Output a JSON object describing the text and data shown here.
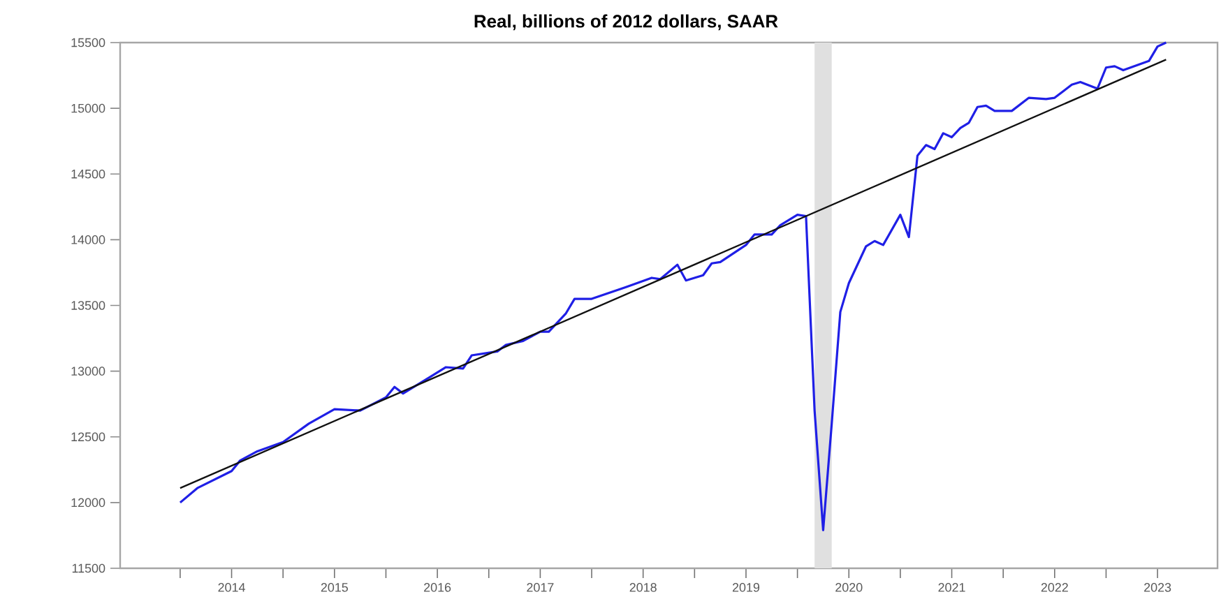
{
  "chart_data": {
    "type": "line",
    "title": "Real, billions of 2012 dollars, SAAR",
    "xlim": [
      "2013-06",
      "2024-02"
    ],
    "ylim": [
      11500,
      15500
    ],
    "yticks": [
      11500,
      12000,
      12500,
      13000,
      13500,
      14000,
      14500,
      15000,
      15500
    ],
    "xticks": [
      {
        "value": "2014-01",
        "label": null
      },
      {
        "value": "2014-07",
        "label": "2014"
      },
      {
        "value": "2015-01",
        "label": null
      },
      {
        "value": "2015-07",
        "label": "2015"
      },
      {
        "value": "2016-01",
        "label": null
      },
      {
        "value": "2016-07",
        "label": "2016"
      },
      {
        "value": "2017-01",
        "label": null
      },
      {
        "value": "2017-07",
        "label": "2017"
      },
      {
        "value": "2018-01",
        "label": null
      },
      {
        "value": "2018-07",
        "label": "2018"
      },
      {
        "value": "2019-01",
        "label": null
      },
      {
        "value": "2019-07",
        "label": "2019"
      },
      {
        "value": "2020-01",
        "label": null
      },
      {
        "value": "2020-07",
        "label": "2020"
      },
      {
        "value": "2021-01",
        "label": null
      },
      {
        "value": "2021-07",
        "label": "2021"
      },
      {
        "value": "2022-01",
        "label": null
      },
      {
        "value": "2022-07",
        "label": "2022"
      },
      {
        "value": "2023-01",
        "label": null
      },
      {
        "value": "2023-07",
        "label": "2023"
      }
    ],
    "bands": [
      {
        "axis": "x",
        "from": "2020-03",
        "to": "2020-05",
        "color": "#e0e0e0"
      }
    ],
    "series": [
      {
        "color": "#1f1fe6",
        "x": [
          "2014-01",
          "2014-03",
          "2014-07",
          "2014-08",
          "2014-10",
          "2015-01",
          "2015-04",
          "2015-07",
          "2015-10",
          "2016-01",
          "2016-02",
          "2016-03",
          "2016-06",
          "2016-08",
          "2016-10",
          "2016-11",
          "2017-02",
          "2017-03",
          "2017-05",
          "2017-07",
          "2017-08",
          "2017-10",
          "2017-11",
          "2018-01",
          "2018-05",
          "2018-08",
          "2018-09",
          "2018-11",
          "2018-12",
          "2019-02",
          "2019-03",
          "2019-04",
          "2019-07",
          "2019-08",
          "2019-10",
          "2019-11",
          "2020-01",
          "2020-02",
          "2020-03",
          "2020-04",
          "2020-05",
          "2020-06",
          "2020-07",
          "2020-09",
          "2020-10",
          "2020-11",
          "2021-01",
          "2021-02",
          "2021-03",
          "2021-04",
          "2021-05",
          "2021-06",
          "2021-07",
          "2021-08",
          "2021-09",
          "2021-10",
          "2021-11",
          "2021-12",
          "2022-02",
          "2022-04",
          "2022-06",
          "2022-07",
          "2022-09",
          "2022-10",
          "2022-12",
          "2023-01",
          "2023-02",
          "2023-03",
          "2023-06",
          "2023-07",
          "2023-08"
        ],
        "values": [
          12000,
          12110,
          12240,
          12320,
          12390,
          12460,
          12600,
          12710,
          12700,
          12800,
          12880,
          12830,
          12950,
          13030,
          13020,
          13120,
          13150,
          13200,
          13230,
          13300,
          13300,
          13440,
          13550,
          13550,
          13640,
          13710,
          13700,
          13810,
          13690,
          13730,
          13820,
          13830,
          13960,
          14040,
          14040,
          14110,
          14190,
          14180,
          12700,
          11790,
          12600,
          13450,
          13670,
          13950,
          13990,
          13960,
          14190,
          14020,
          14640,
          14720,
          14690,
          14810,
          14780,
          14850,
          14890,
          15010,
          15020,
          14980,
          14980,
          15080,
          15070,
          15080,
          15180,
          15200,
          15150,
          15310,
          15320,
          15290,
          15360,
          15470,
          15500
        ]
      },
      {
        "color": "#111111",
        "x": [
          "2014-01",
          "2023-08"
        ],
        "values": [
          12110,
          15370
        ]
      }
    ]
  }
}
